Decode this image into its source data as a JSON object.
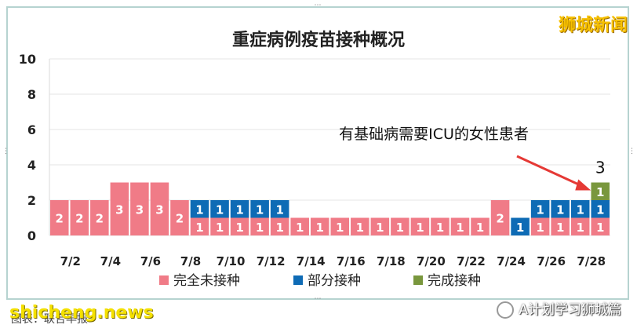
{
  "chart_data": {
    "type": "bar",
    "stacked": true,
    "title": "重症病例疫苗接种概况",
    "categories": [
      "7/2",
      "7/3",
      "7/4",
      "7/5",
      "7/6",
      "7/7",
      "7/8",
      "7/9",
      "7/10",
      "7/11",
      "7/12",
      "7/13",
      "7/14",
      "7/15",
      "7/16",
      "7/17",
      "7/18",
      "7/19",
      "7/20",
      "7/21",
      "7/22",
      "7/23",
      "7/24",
      "7/25",
      "7/26",
      "7/27",
      "7/28",
      "7/29"
    ],
    "x_tick_labels": [
      "7/2",
      "7/4",
      "7/6",
      "7/8",
      "7/10",
      "7/12",
      "7/14",
      "7/16",
      "7/18",
      "7/20",
      "7/22",
      "7/24",
      "7/26",
      "7/28"
    ],
    "series": [
      {
        "name": "完全未接种",
        "color": "#f07b87",
        "values": [
          2,
          2,
          2,
          3,
          3,
          3,
          2,
          1,
          1,
          1,
          1,
          1,
          1,
          1,
          1,
          1,
          1,
          1,
          1,
          1,
          1,
          1,
          2,
          0,
          1,
          1,
          1,
          1
        ]
      },
      {
        "name": "部分接种",
        "color": "#0e6bb5",
        "values": [
          0,
          0,
          0,
          0,
          0,
          0,
          0,
          1,
          1,
          1,
          1,
          1,
          0,
          0,
          0,
          0,
          0,
          0,
          0,
          0,
          0,
          0,
          0,
          1,
          1,
          1,
          1,
          1
        ]
      },
      {
        "name": "完成接种",
        "color": "#79973d",
        "values": [
          0,
          0,
          0,
          0,
          0,
          0,
          0,
          0,
          0,
          0,
          0,
          0,
          0,
          0,
          0,
          0,
          0,
          0,
          0,
          0,
          0,
          0,
          0,
          0,
          0,
          0,
          0,
          1
        ]
      }
    ],
    "y_ticks": [
      0,
      2,
      4,
      6,
      8,
      10
    ],
    "ylim": [
      0,
      10
    ],
    "grid": true,
    "legend_position": "bottom",
    "annotation": {
      "text": "有基础病需要ICU的女性患者",
      "category": "7/29"
    },
    "total_label": {
      "category": "7/29",
      "value": "3"
    }
  },
  "brand": "狮城新闻",
  "watermark_left": "shicheng.news",
  "watermark_right": "A计划学习狮城篇",
  "caption": "图表：联合早报"
}
